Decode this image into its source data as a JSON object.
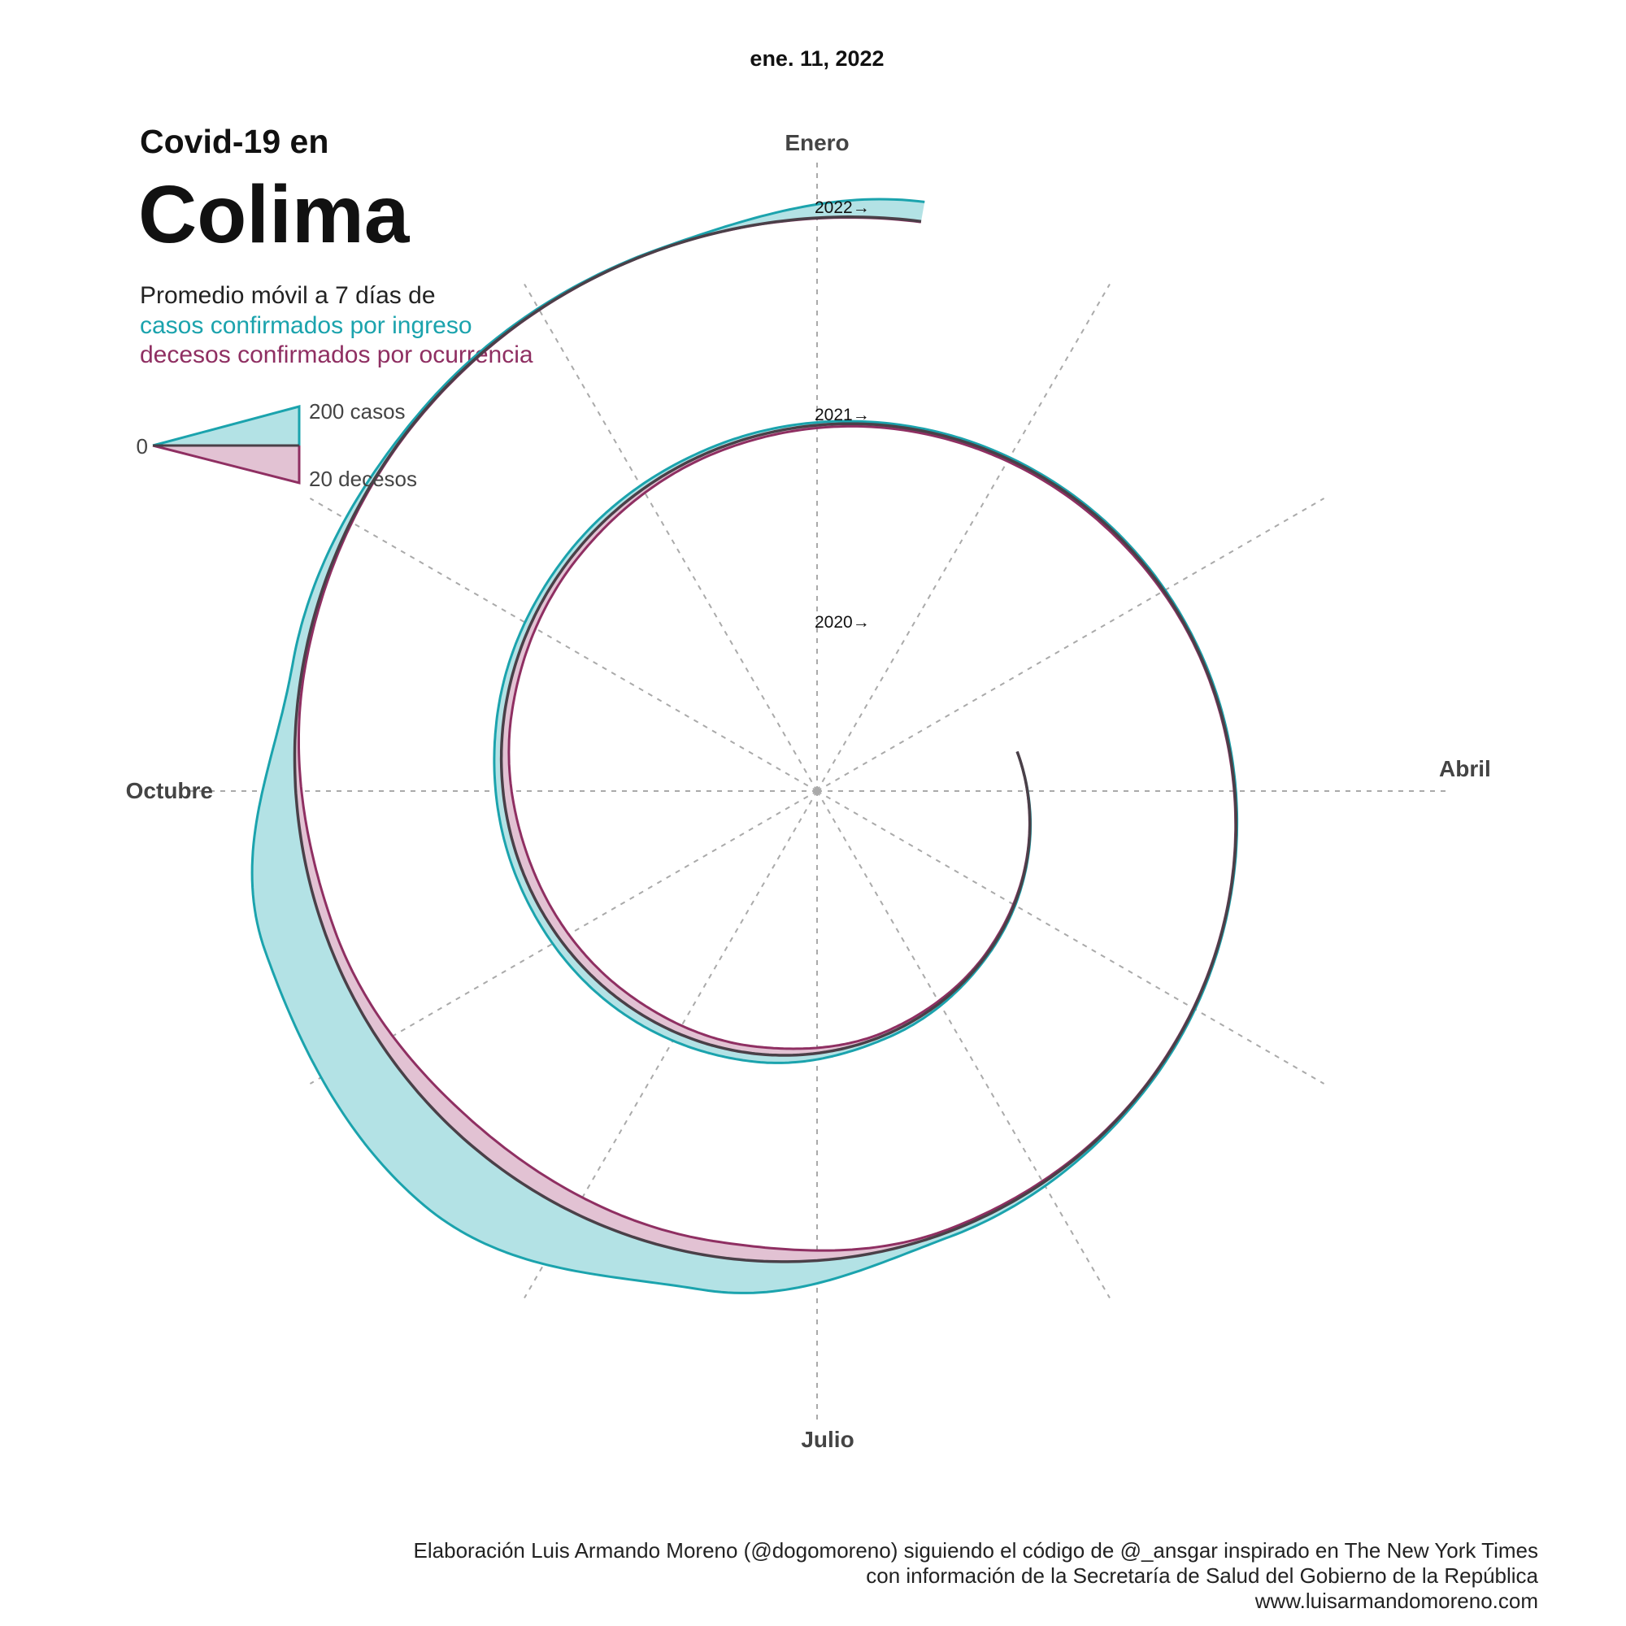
{
  "header": {
    "date": "ene. 11, 2022",
    "subtitle": "Covid-19 en",
    "title": "Colima",
    "desc_line1": "Promedio móvil a 7 días de",
    "desc_cases": "casos confirmados por ingreso",
    "desc_deaths": "decesos confirmados por ocurrencia"
  },
  "legend": {
    "zero": "0",
    "cases": "200 casos",
    "deaths": "20 decesos"
  },
  "colors": {
    "cases": "#1ba3ad",
    "cases_fill": "#b3e2e5",
    "deaths": "#8f2f62",
    "deaths_fill": "#e2c2d3",
    "baseline": "#4a4048",
    "grid": "#aaaaaa"
  },
  "credits": {
    "line1": "Elaboración Luis Armando Moreno (@dogomoreno) siguiendo el código de @_ansgar inspirado en The New York Times",
    "line2": "con información de la Secretaría de Salud del Gobierno de la República",
    "line3": "www.luisarmandomoreno.com"
  },
  "chart_data": {
    "type": "area",
    "layout": "spiral",
    "months": [
      "Enero",
      "Abril",
      "Julio",
      "Octubre"
    ],
    "year_labels": [
      "2020→",
      "2021→",
      "2022→"
    ],
    "scale": {
      "cases_ref": 200,
      "deaths_ref": 20
    },
    "x": [
      "2020-03-21",
      "2020-04-15",
      "2020-05-15",
      "2020-06-15",
      "2020-07-15",
      "2020-08-15",
      "2020-09-15",
      "2020-10-15",
      "2020-11-15",
      "2020-12-15",
      "2021-01-15",
      "2021-02-15",
      "2021-03-15",
      "2021-04-15",
      "2021-05-15",
      "2021-06-15",
      "2021-07-15",
      "2021-08-15",
      "2021-09-15",
      "2021-10-15",
      "2021-11-15",
      "2021-12-15",
      "2022-01-11"
    ],
    "series": [
      {
        "name": "casos confirmados por ingreso",
        "values": [
          0,
          3,
          6,
          15,
          35,
          40,
          34,
          30,
          22,
          15,
          10,
          8,
          6,
          4,
          8,
          22,
          150,
          330,
          270,
          45,
          10,
          4,
          85
        ]
      },
      {
        "name": "decesos confirmados por ocurrencia",
        "values": [
          0,
          0.2,
          0.6,
          1.3,
          3.2,
          4.3,
          4.6,
          3.2,
          2.4,
          1.4,
          1.1,
          1,
          0.4,
          0.2,
          0.3,
          1.1,
          6.8,
          8.5,
          4.5,
          1.1,
          0.3,
          0.1,
          0.3
        ]
      }
    ]
  }
}
